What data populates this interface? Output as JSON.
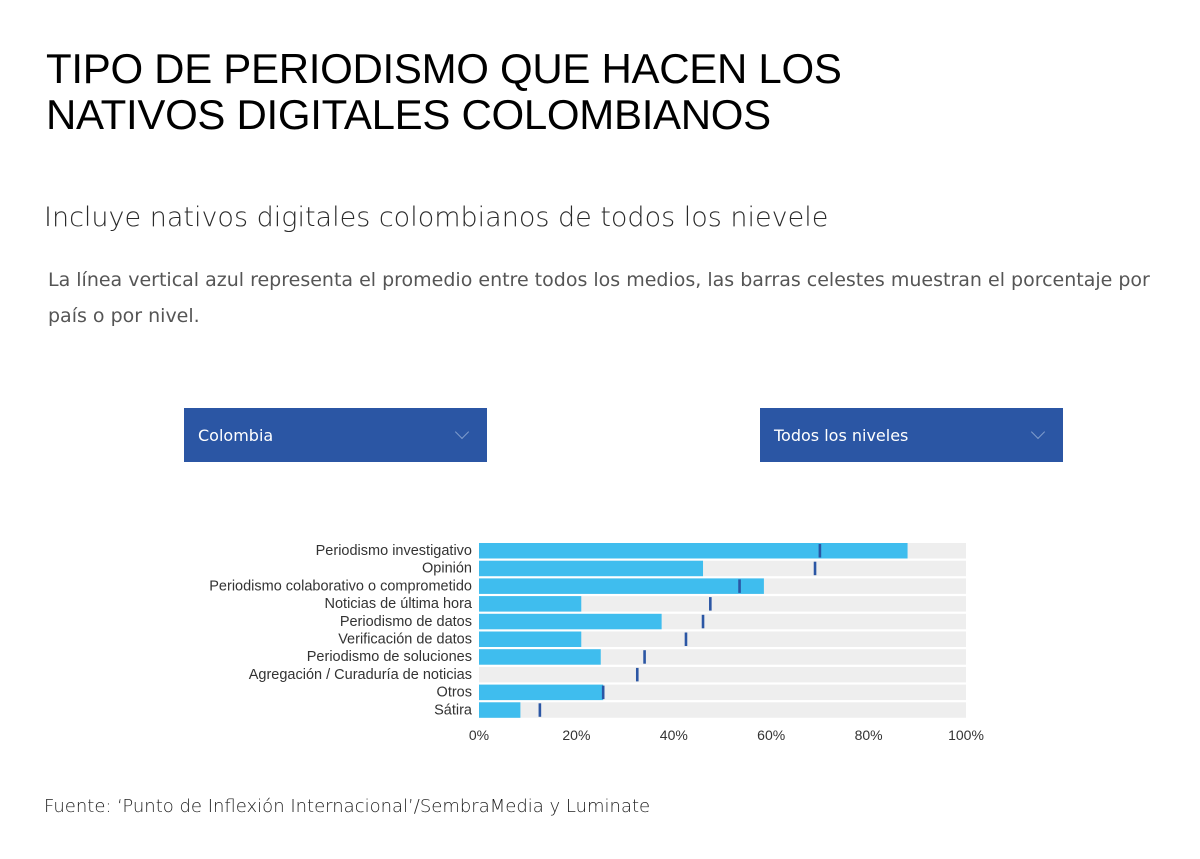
{
  "header": {
    "title_line1": "TIPO DE PERIODISMO QUE HACEN LOS",
    "title_line2": "NATIVOS DIGITALES COLOMBIANOS",
    "subtitle": "Incluye nativos digitales colombianos de todos los nievele",
    "description": "La línea vertical azul representa el promedio entre todos los medios, las barras celestes muestran el porcentaje por país o por nivel."
  },
  "filters": {
    "country": {
      "selected": "Colombia"
    },
    "level": {
      "selected": "Todos los niveles"
    }
  },
  "colors": {
    "bar": "#3fbdee",
    "track": "#eeeeee",
    "average_marker": "#2b56a4",
    "dropdown": "#2b56a4"
  },
  "chart_data": {
    "type": "bar",
    "orientation": "horizontal",
    "categories": [
      "Periodismo investigativo",
      "Opinión",
      "Periodismo colaborativo o comprometido",
      "Noticias de última hora",
      "Periodismo de datos",
      "Verificación de datos",
      "Periodismo de soluciones",
      "Agregación / Curaduría de noticias",
      "Otros",
      "Sátira"
    ],
    "series": [
      {
        "name": "Colombia",
        "values": [
          88,
          46,
          58.5,
          21,
          37.5,
          21,
          25,
          0,
          25.5,
          8.5
        ]
      },
      {
        "name": "Promedio todos los medios",
        "values": [
          70,
          69,
          53.5,
          47.5,
          46,
          42.5,
          34,
          32.5,
          25.5,
          12.5
        ]
      }
    ],
    "xlim": [
      0,
      100
    ],
    "xticks": [
      0,
      20,
      40,
      60,
      80,
      100
    ],
    "xtick_labels": [
      "0%",
      "20%",
      "40%",
      "60%",
      "80%",
      "100%"
    ],
    "xlabel": "",
    "ylabel": ""
  },
  "footer": {
    "source": "Fuente: ‘Punto de Inflexión Internacional’/SembraMedia y Luminate"
  }
}
